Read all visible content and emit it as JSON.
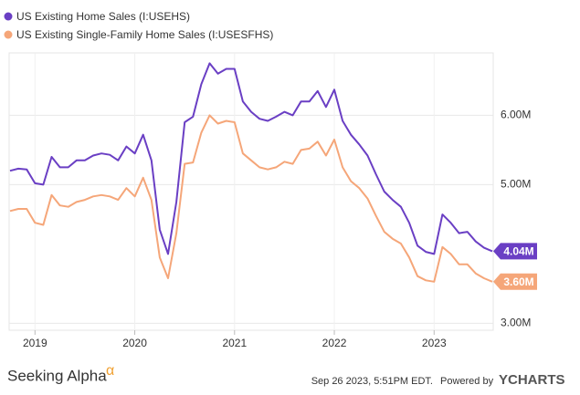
{
  "chart_data": {
    "type": "line",
    "categories": [
      null,
      null,
      null,
      "2019",
      null,
      null,
      null,
      null,
      null,
      null,
      null,
      null,
      null,
      null,
      null,
      "2020",
      null,
      null,
      null,
      null,
      null,
      null,
      null,
      null,
      null,
      null,
      null,
      "2021",
      null,
      null,
      null,
      null,
      null,
      null,
      null,
      null,
      null,
      null,
      null,
      "2022",
      null,
      null,
      null,
      null,
      null,
      null,
      null,
      null,
      null,
      null,
      null,
      "2023",
      null,
      null,
      null,
      null,
      null,
      null,
      null
    ],
    "series": [
      {
        "name": "US Existing Home Sales (I:USEHS)",
        "color": "#6a3fc4",
        "last_value_label": "4.04M",
        "values": [
          5200000,
          5230000,
          5220000,
          5020000,
          5000000,
          5400000,
          5250000,
          5250000,
          5350000,
          5350000,
          5420000,
          5450000,
          5430000,
          5350000,
          5550000,
          5450000,
          5720000,
          5350000,
          4350000,
          4000000,
          4750000,
          5900000,
          5980000,
          6450000,
          6750000,
          6600000,
          6670000,
          6670000,
          6200000,
          6050000,
          5950000,
          5920000,
          5980000,
          6050000,
          6000000,
          6200000,
          6200000,
          6350000,
          6120000,
          6370000,
          5920000,
          5720000,
          5580000,
          5420000,
          5150000,
          4900000,
          4780000,
          4680000,
          4450000,
          4120000,
          4030000,
          4000000,
          4570000,
          4450000,
          4300000,
          4320000,
          4180000,
          4090000,
          4040000
        ]
      },
      {
        "name": "US Existing Single-Family Home Sales (I:USESFHS)",
        "color": "#f5a679",
        "last_value_label": "3.60M",
        "values": [
          4620000,
          4650000,
          4650000,
          4450000,
          4420000,
          4850000,
          4700000,
          4680000,
          4750000,
          4780000,
          4830000,
          4850000,
          4830000,
          4780000,
          4950000,
          4830000,
          5100000,
          4780000,
          3950000,
          3650000,
          4300000,
          5300000,
          5320000,
          5750000,
          6000000,
          5880000,
          5920000,
          5900000,
          5450000,
          5350000,
          5250000,
          5220000,
          5250000,
          5330000,
          5300000,
          5500000,
          5520000,
          5620000,
          5420000,
          5650000,
          5250000,
          5050000,
          4950000,
          4800000,
          4550000,
          4320000,
          4220000,
          4150000,
          3950000,
          3680000,
          3620000,
          3600000,
          4100000,
          4000000,
          3850000,
          3850000,
          3720000,
          3650000,
          3600000
        ]
      }
    ],
    "ylim": [
      2900000,
      6900000
    ],
    "yticks": [
      {
        "value": 3000000,
        "label": "3.00M"
      },
      {
        "value": 5000000,
        "label": "5.00M"
      },
      {
        "value": 6000000,
        "label": "6.00M"
      }
    ],
    "grid": true,
    "legend": "top-left"
  },
  "footer": {
    "brand": "Seeking Alpha",
    "brand_symbol": "α",
    "timestamp": "Sep 26 2023, 5:51PM EDT.",
    "powered_by": "Powered by",
    "provider": "YCHARTS"
  }
}
